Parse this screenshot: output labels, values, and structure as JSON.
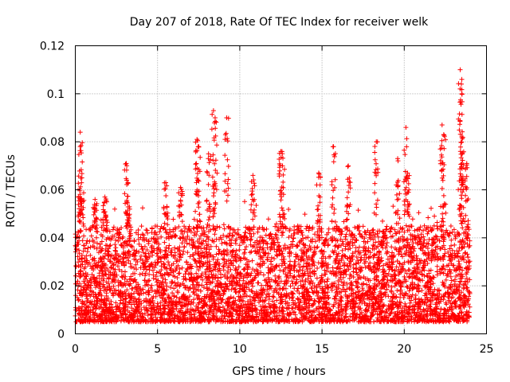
{
  "chart_data": {
    "type": "scatter",
    "title": "Day 207 of 2018, Rate Of TEC Index for receiver welk",
    "xlabel": "GPS time / hours",
    "ylabel": "ROTI / TECUs",
    "xlim": [
      0,
      25
    ],
    "ylim": [
      0,
      0.12
    ],
    "x_ticks": [
      0,
      5,
      10,
      15,
      20,
      25
    ],
    "x_tick_labels": [
      "0",
      "5",
      "10",
      "15",
      "20",
      "25"
    ],
    "y_ticks": [
      0,
      0.02,
      0.04,
      0.06,
      0.08,
      0.1,
      0.12
    ],
    "y_tick_labels": [
      "0",
      "0.02",
      "0.04",
      "0.06",
      "0.08",
      "0.1",
      "0.12"
    ],
    "grid": true,
    "marker": "+",
    "color": "#ff0000",
    "series": [
      {
        "name": "ROTI",
        "data_range_x": [
          0,
          24
        ],
        "typical_y_range": [
          0.005,
          0.045
        ],
        "spikes": [
          {
            "x": 0.3,
            "y": 0.084
          },
          {
            "x": 0.3,
            "y": 0.078
          },
          {
            "x": 0.4,
            "y": 0.065
          },
          {
            "x": 1.2,
            "y": 0.056
          },
          {
            "x": 1.8,
            "y": 0.057
          },
          {
            "x": 3.1,
            "y": 0.071
          },
          {
            "x": 3.2,
            "y": 0.063
          },
          {
            "x": 5.5,
            "y": 0.063
          },
          {
            "x": 6.4,
            "y": 0.061
          },
          {
            "x": 7.4,
            "y": 0.081
          },
          {
            "x": 7.5,
            "y": 0.078
          },
          {
            "x": 8.1,
            "y": 0.075
          },
          {
            "x": 8.4,
            "y": 0.093
          },
          {
            "x": 8.5,
            "y": 0.09
          },
          {
            "x": 9.2,
            "y": 0.09
          },
          {
            "x": 10.8,
            "y": 0.066
          },
          {
            "x": 12.5,
            "y": 0.076
          },
          {
            "x": 12.6,
            "y": 0.07
          },
          {
            "x": 14.8,
            "y": 0.067
          },
          {
            "x": 15.7,
            "y": 0.078
          },
          {
            "x": 16.6,
            "y": 0.07
          },
          {
            "x": 18.3,
            "y": 0.08
          },
          {
            "x": 19.6,
            "y": 0.073
          },
          {
            "x": 20.1,
            "y": 0.086
          },
          {
            "x": 20.2,
            "y": 0.067
          },
          {
            "x": 22.3,
            "y": 0.087
          },
          {
            "x": 22.4,
            "y": 0.083
          },
          {
            "x": 23.4,
            "y": 0.11
          },
          {
            "x": 23.5,
            "y": 0.106
          },
          {
            "x": 23.5,
            "y": 0.1
          },
          {
            "x": 23.5,
            "y": 0.082
          },
          {
            "x": 23.8,
            "y": 0.071
          }
        ]
      }
    ]
  }
}
